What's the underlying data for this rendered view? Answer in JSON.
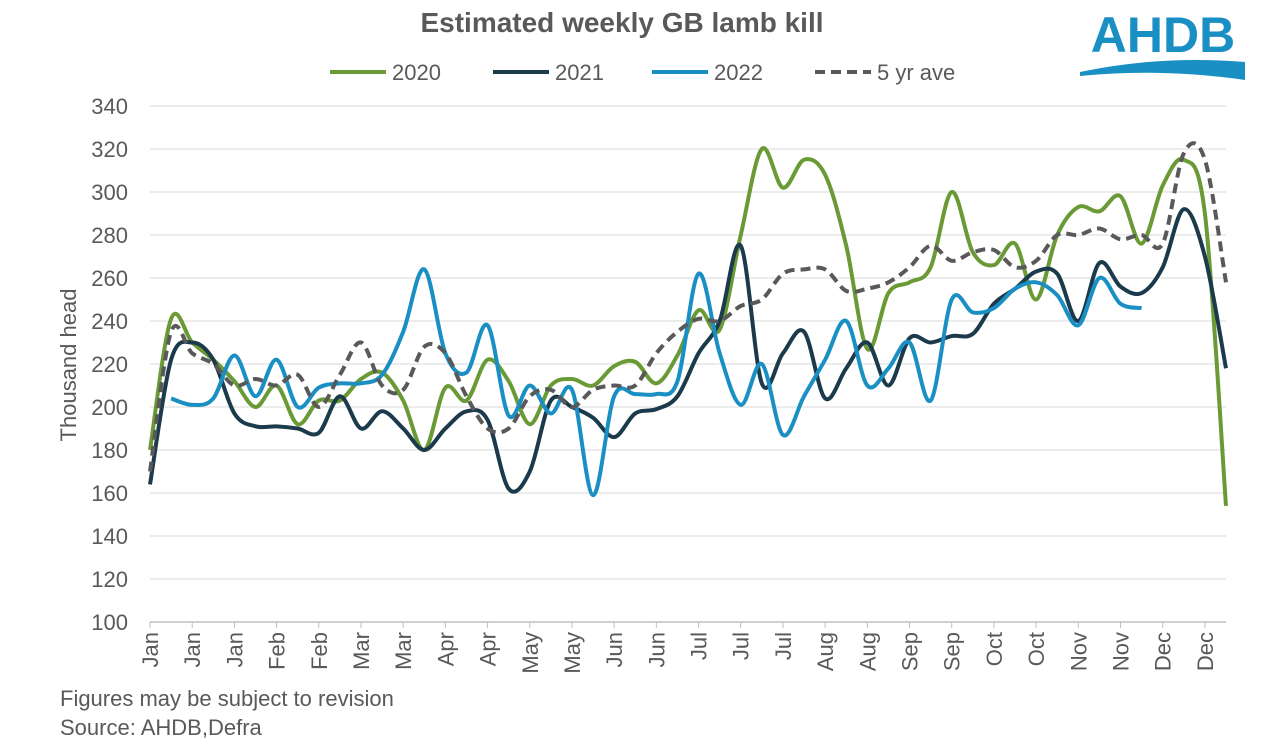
{
  "chart_data": {
    "type": "line",
    "title": "Estimated weekly GB lamb kill",
    "ylabel": "Thousand head",
    "notes": [
      "Figures may be subject to revision",
      "Source: AHDB,Defra"
    ],
    "logo": "AHDB",
    "categories": [
      "Jan",
      null,
      "Jan",
      null,
      "Jan",
      null,
      "Feb",
      null,
      "Feb",
      null,
      "Mar",
      null,
      "Mar",
      null,
      "Apr",
      null,
      "Apr",
      null,
      "May",
      null,
      "May",
      null,
      "Jun",
      null,
      "Jun",
      null,
      "Jul",
      null,
      "Jul",
      null,
      "Jul",
      null,
      "Aug",
      null,
      "Aug",
      null,
      "Sep",
      null,
      "Sep",
      null,
      "Oct",
      null,
      "Oct",
      null,
      "Nov",
      null,
      "Nov",
      null,
      "Dec",
      null,
      "Dec",
      null
    ],
    "series": [
      {
        "name": "2020",
        "color": "#6a9a35",
        "dashed": false,
        "values": [
          180,
          241,
          230,
          222,
          212,
          200,
          210,
          192,
          203,
          203,
          213,
          216,
          203,
          180,
          209,
          203,
          222,
          212,
          192,
          210,
          213,
          210,
          219,
          221,
          211,
          224,
          245,
          236,
          280,
          320,
          302,
          315,
          308,
          275,
          227,
          253,
          258,
          265,
          300,
          272,
          266,
          276,
          250,
          280,
          293,
          291,
          298,
          276,
          303,
          315,
          290,
          154
        ]
      },
      {
        "name": "2021",
        "color": "#1b3a4b",
        "dashed": false,
        "values": [
          164,
          222,
          230,
          222,
          197,
          191,
          191,
          190,
          188,
          205,
          190,
          198,
          190,
          180,
          190,
          198,
          194,
          162,
          170,
          203,
          200,
          195,
          186,
          197,
          199,
          205,
          225,
          240,
          275,
          211,
          225,
          235,
          204,
          218,
          230,
          210,
          232,
          230,
          233,
          234,
          248,
          255,
          263,
          262,
          240,
          267,
          256,
          253,
          265,
          292,
          270,
          218
        ]
      },
      {
        "name": "2022",
        "color": "#1a8fc4",
        "dashed": false,
        "values": [
          null,
          204,
          201,
          204,
          224,
          205,
          222,
          200,
          209,
          211,
          211,
          215,
          235,
          264,
          225,
          216,
          238,
          196,
          210,
          197,
          208,
          159,
          205,
          206,
          206,
          212,
          262,
          225,
          201,
          220,
          187,
          205,
          222,
          240,
          210,
          218,
          230,
          203,
          250,
          244,
          246,
          255,
          258,
          252,
          238,
          260,
          248,
          246,
          null,
          null,
          null,
          null
        ]
      },
      {
        "name": "5 yr ave",
        "color": "#595959",
        "dashed": true,
        "values": [
          170,
          235,
          225,
          220,
          210,
          213,
          210,
          215,
          200,
          215,
          230,
          210,
          208,
          228,
          225,
          205,
          190,
          190,
          205,
          208,
          200,
          208,
          210,
          210,
          225,
          235,
          241,
          240,
          247,
          250,
          262,
          264,
          264,
          254,
          255,
          258,
          265,
          275,
          268,
          272,
          273,
          265,
          268,
          280,
          280,
          283,
          278,
          280,
          276,
          318,
          315,
          258
        ]
      }
    ],
    "ylim": [
      100,
      340
    ],
    "yticks": [
      100,
      120,
      140,
      160,
      180,
      200,
      220,
      240,
      260,
      280,
      300,
      320,
      340
    ],
    "grid": true
  }
}
